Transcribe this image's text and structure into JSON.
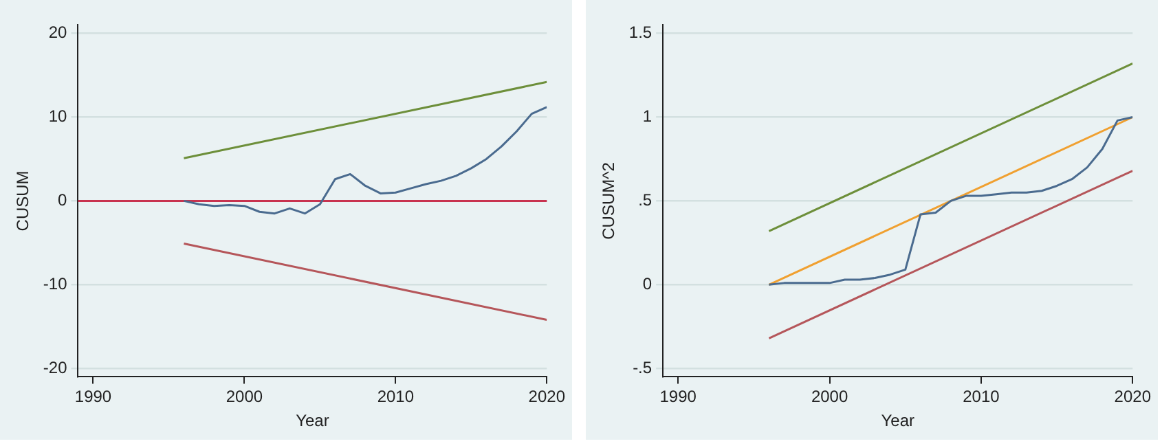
{
  "chart_data": [
    {
      "type": "line",
      "xlabel": "Year",
      "ylabel": "CUSUM",
      "xlim": [
        1989,
        2020
      ],
      "xticks": [
        1990,
        2000,
        2010,
        2020
      ],
      "ylim": [
        -21,
        21
      ],
      "yticks": [
        -20,
        -10,
        0,
        10,
        20
      ],
      "grid": "y",
      "legend": false,
      "marker": "none",
      "line_style": "solid",
      "ref_lines": [
        {
          "axis": "y",
          "value": 0,
          "color": "#c8334f"
        }
      ],
      "series": [
        {
          "color": "#4a6b8f",
          "x": [
            1996,
            1997,
            1998,
            1999,
            2000,
            2001,
            2002,
            2003,
            2004,
            2005,
            2006,
            2007,
            2008,
            2009,
            2010,
            2011,
            2012,
            2013,
            2014,
            2015,
            2016,
            2017,
            2018,
            2019,
            2020
          ],
          "values": [
            0,
            -0.4,
            -0.6,
            -0.5,
            -0.6,
            -1.3,
            -1.5,
            -0.9,
            -1.5,
            -0.4,
            2.6,
            3.2,
            1.8,
            0.9,
            1.0,
            1.5,
            2.0,
            2.4,
            3.0,
            3.9,
            5.0,
            6.5,
            8.3,
            10.4,
            11.2
          ]
        },
        {
          "color": "#6d8f3a",
          "x": [
            1996,
            2020
          ],
          "values": [
            5.1,
            14.2
          ]
        },
        {
          "color": "#b5565a",
          "x": [
            1996,
            2020
          ],
          "values": [
            -5.1,
            -14.2
          ]
        }
      ]
    },
    {
      "type": "line",
      "xlabel": "Year",
      "ylabel": "CUSUM^2",
      "xlim": [
        1989,
        2020
      ],
      "xticks": [
        1990,
        2000,
        2010,
        2020
      ],
      "ylim": [
        -0.55,
        1.55
      ],
      "yticks": [
        {
          "value": -0.5,
          "label": "-.5"
        },
        0,
        {
          "value": 0.5,
          "label": ".5"
        },
        1,
        1.5
      ],
      "grid": "y",
      "legend": false,
      "marker": "none",
      "line_style": "solid",
      "series": [
        {
          "color": "#4a6b8f",
          "x": [
            1996,
            1997,
            1998,
            1999,
            2000,
            2001,
            2002,
            2003,
            2004,
            2005,
            2006,
            2007,
            2008,
            2009,
            2010,
            2011,
            2012,
            2013,
            2014,
            2015,
            2016,
            2017,
            2018,
            2019,
            2020
          ],
          "values": [
            0,
            0.01,
            0.01,
            0.01,
            0.01,
            0.03,
            0.03,
            0.04,
            0.06,
            0.09,
            0.42,
            0.43,
            0.5,
            0.53,
            0.53,
            0.54,
            0.55,
            0.55,
            0.56,
            0.59,
            0.63,
            0.7,
            0.81,
            0.98,
            1.0
          ]
        },
        {
          "color": "#6d8f3a",
          "x": [
            1996,
            2020
          ],
          "values": [
            0.32,
            1.32
          ]
        },
        {
          "color": "#f0a030",
          "x": [
            1996,
            2020
          ],
          "values": [
            0,
            1
          ]
        },
        {
          "color": "#b5565a",
          "x": [
            1996,
            2020
          ],
          "values": [
            -0.32,
            0.68
          ]
        }
      ]
    }
  ]
}
